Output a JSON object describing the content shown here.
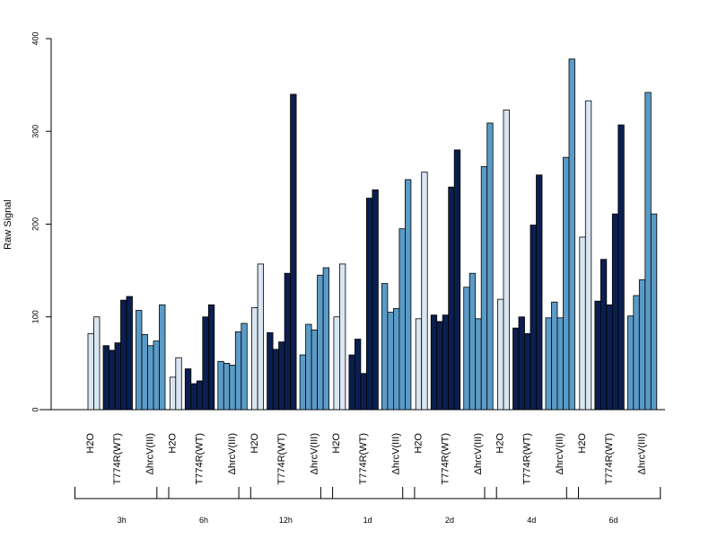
{
  "chart_data": {
    "type": "bar",
    "title": "",
    "xlabel": "",
    "ylabel": "Raw Signal",
    "ylim": [
      0,
      400
    ],
    "yticks": [
      0,
      100,
      200,
      300,
      400
    ],
    "grid": false,
    "legend": "none",
    "series_colors": {
      "H2O": "#d9e6f2",
      "T774R(WT)": "#0b1f4f",
      "ΔhrcV(III)": "#5a9bc7"
    },
    "category_labels": [
      "H2O",
      "T774R(WT)",
      "ΔhrcV(III)"
    ],
    "groups": [
      {
        "label": "3h",
        "bars": [
          {
            "category": "H2O",
            "values": [
              0,
              82,
              100
            ]
          },
          {
            "category": "T774R(WT)",
            "values": [
              69,
              64,
              72,
              118,
              122
            ]
          },
          {
            "category": "ΔhrcV(III)",
            "values": [
              107,
              81,
              69,
              74,
              113
            ]
          }
        ]
      },
      {
        "label": "6h",
        "bars": [
          {
            "category": "H2O",
            "values": [
              0,
              35,
              56
            ]
          },
          {
            "category": "T774R(WT)",
            "values": [
              44,
              28,
              31,
              100,
              113
            ]
          },
          {
            "category": "ΔhrcV(III)",
            "values": [
              52,
              50,
              48,
              84,
              93
            ]
          }
        ]
      },
      {
        "label": "12h",
        "bars": [
          {
            "category": "H2O",
            "values": [
              0,
              110,
              157
            ]
          },
          {
            "category": "T774R(WT)",
            "values": [
              83,
              65,
              73,
              147,
              340
            ]
          },
          {
            "category": "ΔhrcV(III)",
            "values": [
              59,
              92,
              86,
              145,
              153
            ]
          }
        ]
      },
      {
        "label": "1d",
        "bars": [
          {
            "category": "H2O",
            "values": [
              0,
              100,
              157
            ]
          },
          {
            "category": "T774R(WT)",
            "values": [
              59,
              76,
              39,
              228,
              237
            ]
          },
          {
            "category": "ΔhrcV(III)",
            "values": [
              136,
              105,
              109,
              195,
              248
            ]
          }
        ]
      },
      {
        "label": "2d",
        "bars": [
          {
            "category": "H2O",
            "values": [
              0,
              98,
              256
            ]
          },
          {
            "category": "T774R(WT)",
            "values": [
              102,
              95,
              102,
              240,
              280
            ]
          },
          {
            "category": "ΔhrcV(III)",
            "values": [
              132,
              147,
              98,
              262,
              309
            ]
          }
        ]
      },
      {
        "label": "4d",
        "bars": [
          {
            "category": "H2O",
            "values": [
              0,
              119,
              323
            ]
          },
          {
            "category": "T774R(WT)",
            "values": [
              88,
              100,
              82,
              199,
              253
            ]
          },
          {
            "category": "ΔhrcV(III)",
            "values": [
              99,
              116,
              99,
              272,
              378
            ]
          }
        ]
      },
      {
        "label": "6d",
        "bars": [
          {
            "category": "H2O",
            "values": [
              0,
              186,
              333
            ]
          },
          {
            "category": "T774R(WT)",
            "values": [
              117,
              162,
              113,
              211,
              307
            ]
          },
          {
            "category": "ΔhrcV(III)",
            "values": [
              101,
              123,
              140,
              342,
              211
            ]
          }
        ]
      }
    ]
  }
}
